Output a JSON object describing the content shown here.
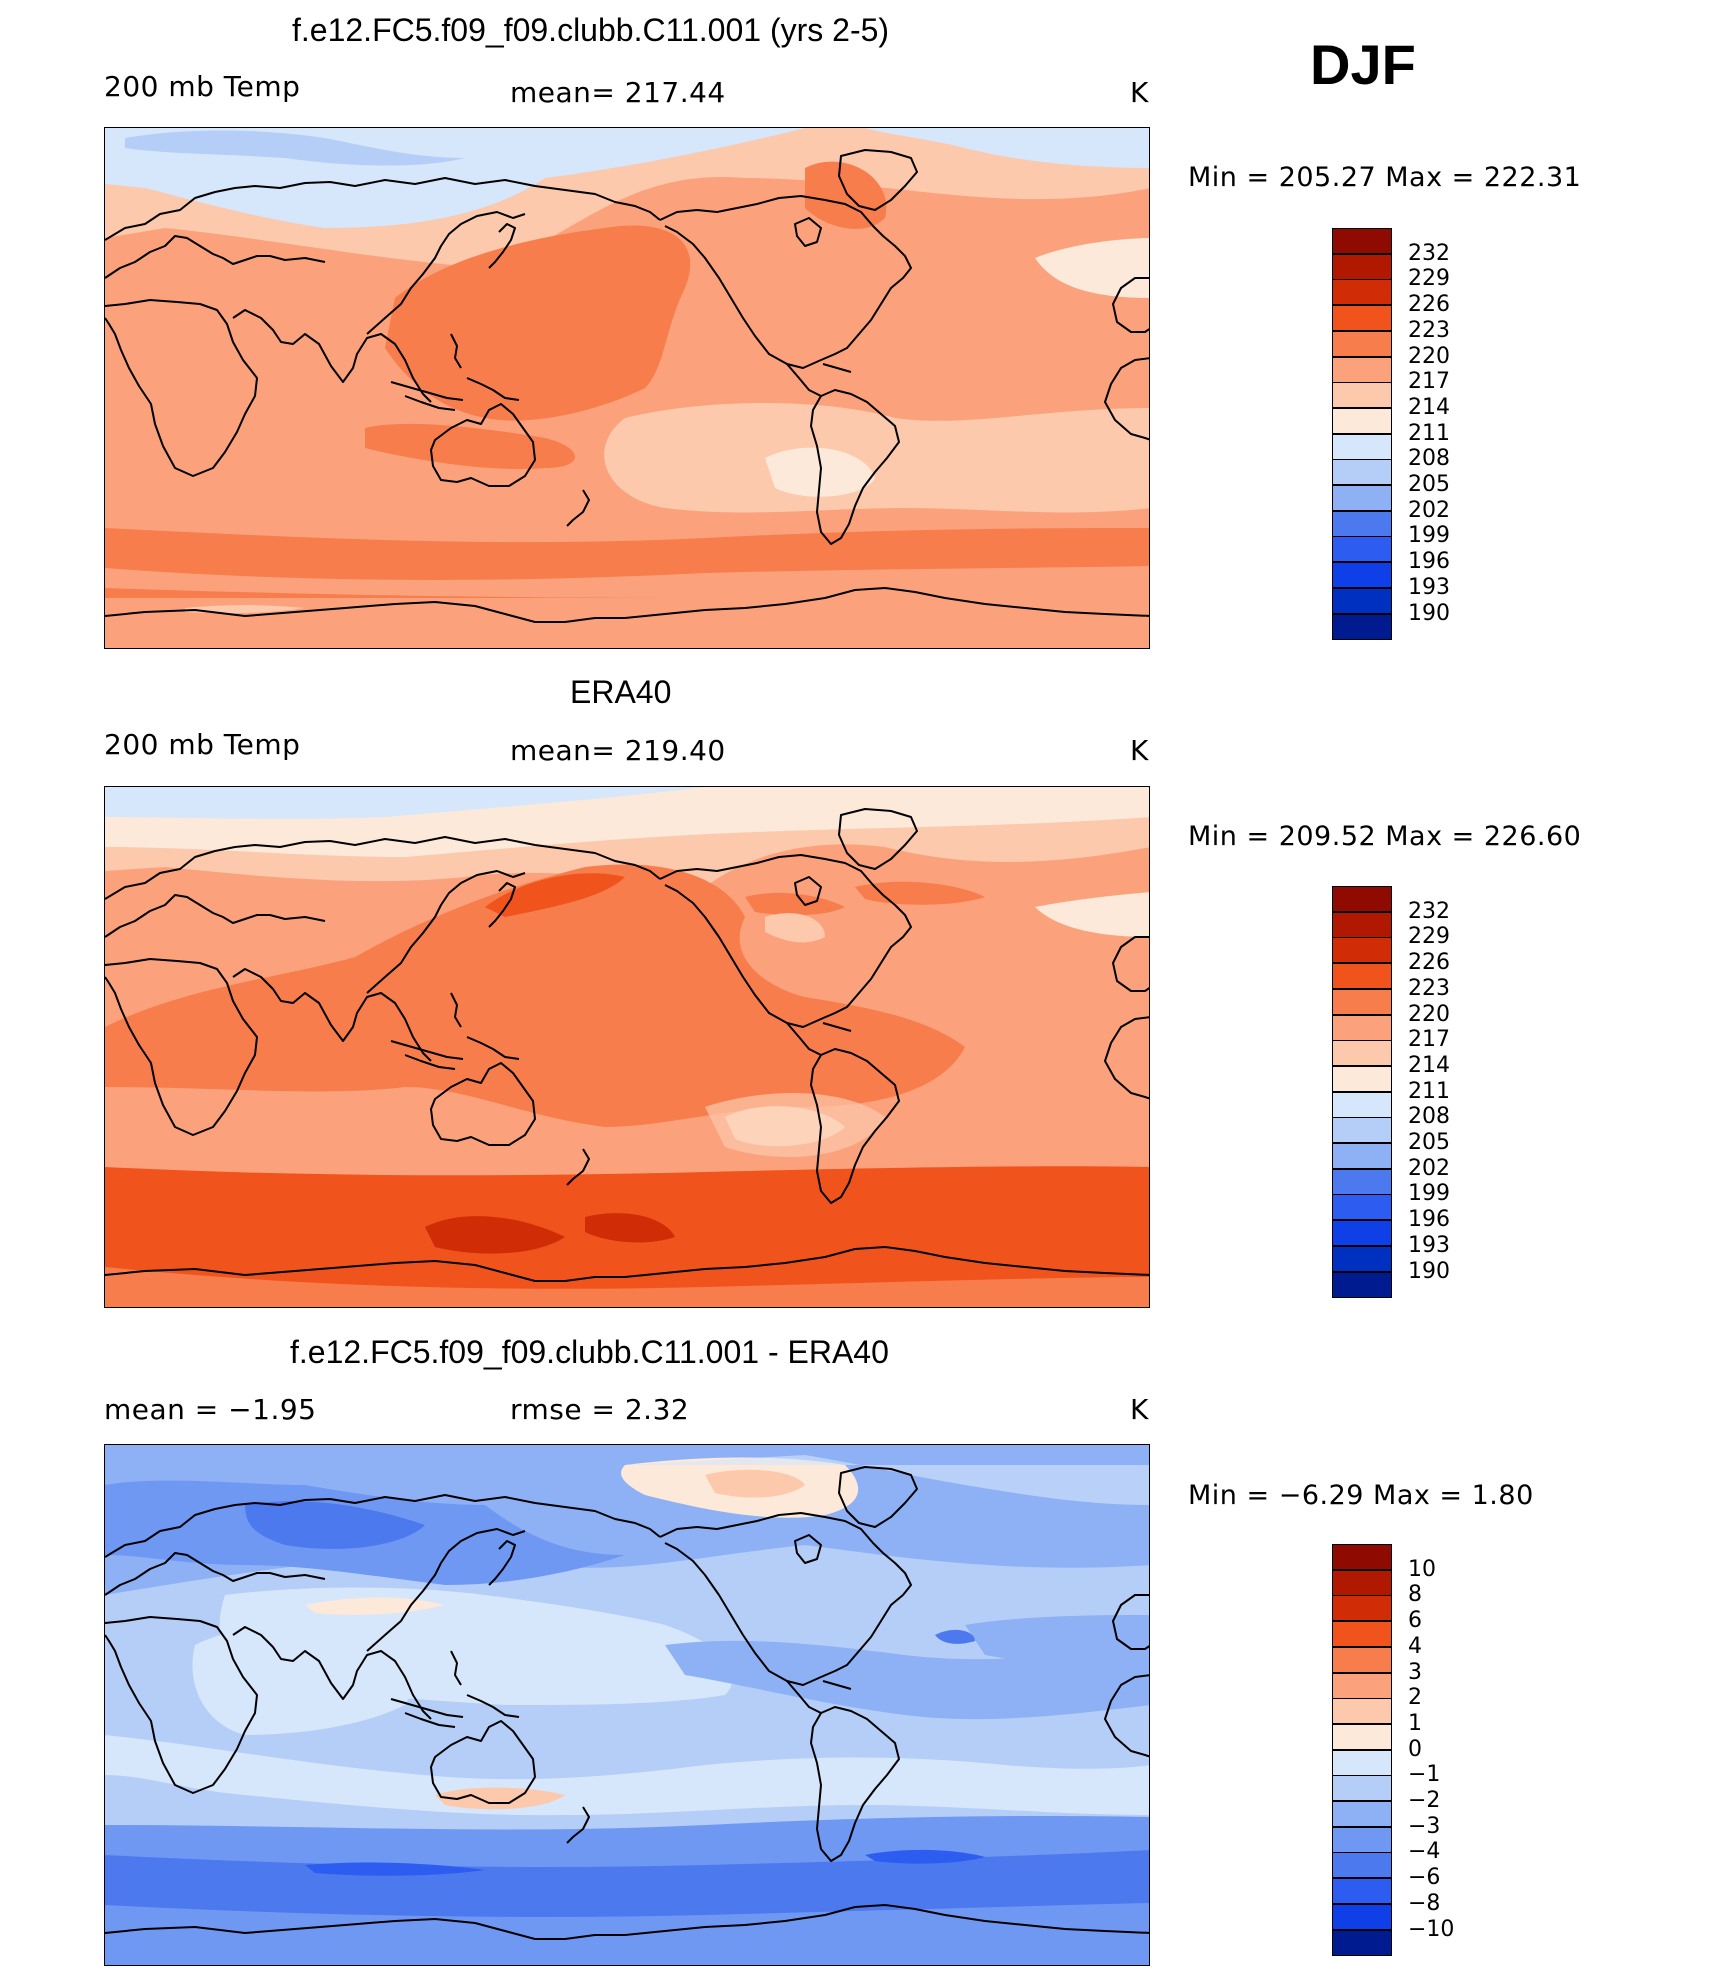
{
  "season": "DJF",
  "colors": {
    "warm": [
      "#fde9d9",
      "#fcc9ad",
      "#fba27c",
      "#f77d4c",
      "#f45a24",
      "#e03a12",
      "#c01f08",
      "#8f0a00"
    ],
    "cool": [
      "#d6e6fb",
      "#b4cef8",
      "#8eb1f5",
      "#6f98f3",
      "#4c79ee",
      "#2d5df0",
      "#0f3fe6",
      "#0030c0",
      "#001a8f"
    ],
    "coast": "#000000"
  },
  "panels": [
    {
      "title": "f.e12.FC5.f09_f09.clubb.C11.001 (yrs 2-5)",
      "left_text": "200 mb Temp",
      "center_text": "mean=  217.44",
      "units": "K",
      "min_max": "Min  =  205.27  Max  =  222.31",
      "colorbar_labels": [
        "232",
        "229",
        "226",
        "223",
        "220",
        "217",
        "214",
        "211",
        "208",
        "205",
        "202",
        "199",
        "196",
        "193",
        "190"
      ],
      "colorbar_colors": [
        "#8f0a00",
        "#b01800",
        "#d02c05",
        "#f0541c",
        "#f77d4c",
        "#fba27c",
        "#fcc9ad",
        "#fde9d9",
        "#d6e6fb",
        "#b4cef8",
        "#8eb1f5",
        "#4c79ee",
        "#2d5df0",
        "#0f3fe6",
        "#0030c0",
        "#001a8f"
      ]
    },
    {
      "title": "ERA40",
      "left_text": "200 mb Temp",
      "center_text": "mean=  219.40",
      "units": "K",
      "min_max": "Min  =  209.52  Max  =  226.60",
      "colorbar_labels": [
        "232",
        "229",
        "226",
        "223",
        "220",
        "217",
        "214",
        "211",
        "208",
        "205",
        "202",
        "199",
        "196",
        "193",
        "190"
      ],
      "colorbar_colors": [
        "#8f0a00",
        "#b01800",
        "#d02c05",
        "#f0541c",
        "#f77d4c",
        "#fba27c",
        "#fcc9ad",
        "#fde9d9",
        "#d6e6fb",
        "#b4cef8",
        "#8eb1f5",
        "#4c79ee",
        "#2d5df0",
        "#0f3fe6",
        "#0030c0",
        "#001a8f"
      ]
    },
    {
      "title": "f.e12.FC5.f09_f09.clubb.C11.001 - ERA40",
      "left_text": "mean  =   −1.95",
      "center_text": "rmse  =     2.32",
      "units": "K",
      "min_max": "Min  =    −6.29  Max  =     1.80",
      "colorbar_labels": [
        "10",
        "8",
        "6",
        "4",
        "3",
        "2",
        "1",
        "0",
        "−1",
        "−2",
        "−3",
        "−4",
        "−6",
        "−8",
        "−10"
      ],
      "colorbar_colors": [
        "#8f0a00",
        "#b01800",
        "#d02c05",
        "#f0541c",
        "#f77d4c",
        "#fba27c",
        "#fcc9ad",
        "#fde9d9",
        "#d6e6fb",
        "#b4cef8",
        "#8eb1f5",
        "#6f98f3",
        "#4c79ee",
        "#2d5df0",
        "#0f3fe6",
        "#001a8f"
      ]
    }
  ]
}
